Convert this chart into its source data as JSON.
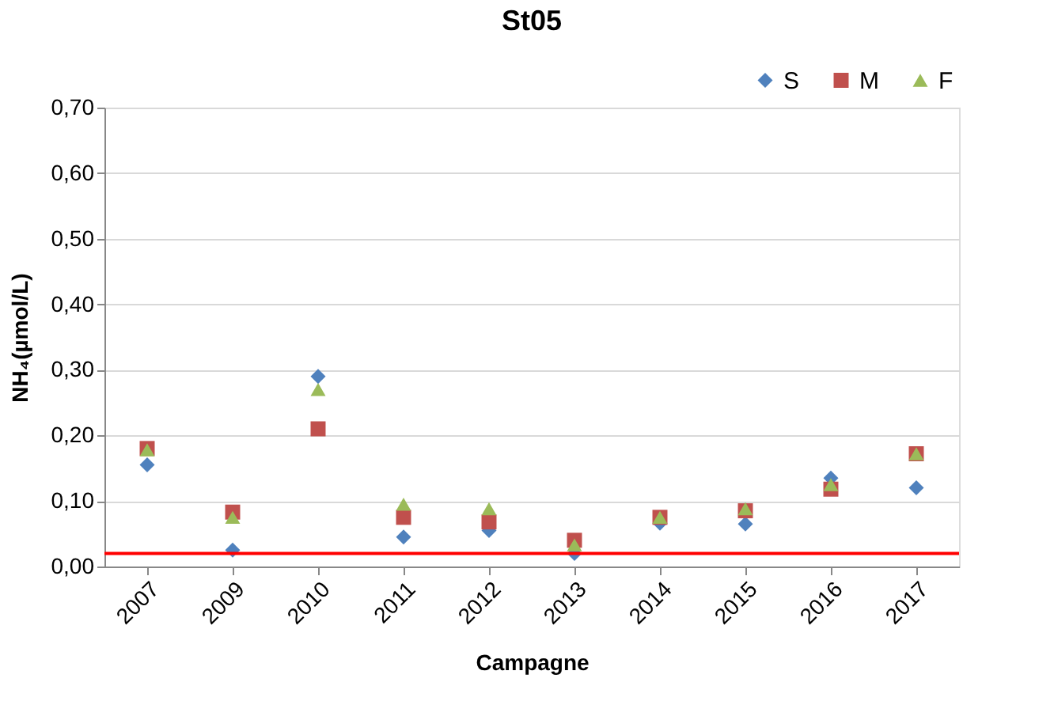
{
  "chart_data": {
    "type": "scatter",
    "title": "St05",
    "xlabel": "Campagne",
    "ylabel": "NH₄(µmol/L)",
    "categories": [
      "2007",
      "2009",
      "2010",
      "2011",
      "2012",
      "2013",
      "2014",
      "2015",
      "2016",
      "2017"
    ],
    "series": [
      {
        "name": "S",
        "color": "#4f81bd",
        "marker": "diamond",
        "values": [
          0.155,
          0.025,
          0.29,
          0.045,
          0.055,
          0.02,
          0.066,
          0.065,
          0.135,
          0.12
        ]
      },
      {
        "name": "M",
        "color": "#c0504d",
        "marker": "square",
        "values": [
          0.18,
          0.083,
          0.21,
          0.075,
          0.068,
          0.04,
          0.075,
          0.085,
          0.118,
          0.172
        ]
      },
      {
        "name": "F",
        "color": "#9bbb59",
        "marker": "triangle",
        "values": [
          0.178,
          0.075,
          0.27,
          0.095,
          0.088,
          0.033,
          0.075,
          0.088,
          0.125,
          0.172
        ]
      }
    ],
    "ylim": [
      0,
      0.7
    ],
    "yticks": [
      {
        "value": 0,
        "label": "0,00"
      },
      {
        "value": 0.1,
        "label": "0,10"
      },
      {
        "value": 0.2,
        "label": "0,20"
      },
      {
        "value": 0.3,
        "label": "0,30"
      },
      {
        "value": 0.4,
        "label": "0,40"
      },
      {
        "value": 0.5,
        "label": "0,50"
      },
      {
        "value": 0.6,
        "label": "0,60"
      },
      {
        "value": 0.7,
        "label": "0,70"
      }
    ],
    "ref_lines": [
      {
        "axis": "y",
        "value": 0.02,
        "color": "#ff0000"
      }
    ],
    "grid": "y",
    "legend": "top right"
  }
}
